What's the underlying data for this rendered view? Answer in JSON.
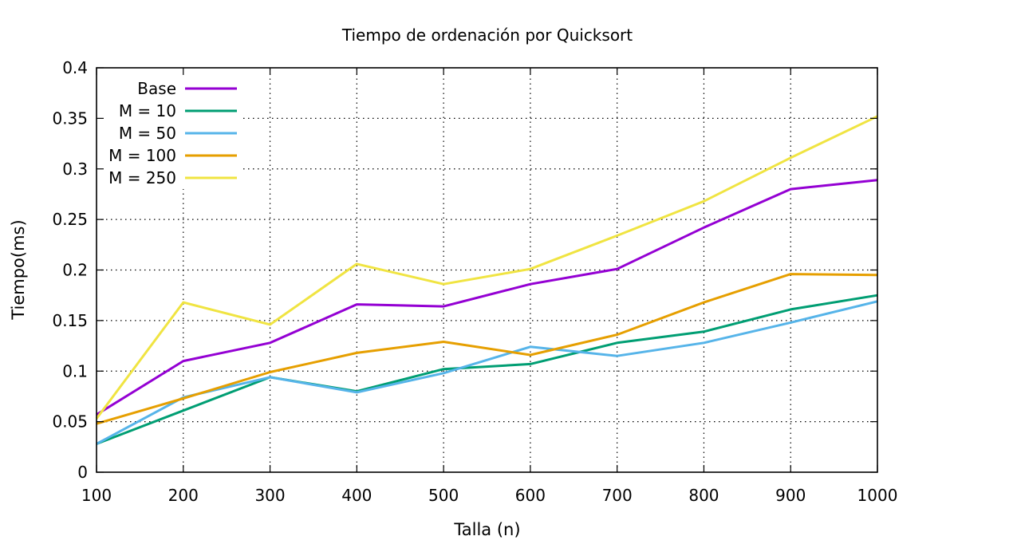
{
  "chart_data": {
    "type": "line",
    "title": "Tiempo de ordenación por Quicksort",
    "xlabel": "Talla (n)",
    "ylabel": "Tiempo(ms)",
    "x": [
      100,
      200,
      300,
      400,
      500,
      600,
      700,
      800,
      900,
      1000
    ],
    "xlim": [
      100,
      1000
    ],
    "ylim": [
      0,
      0.4
    ],
    "x_ticks": [
      100,
      200,
      300,
      400,
      500,
      600,
      700,
      800,
      900,
      1000
    ],
    "x_tick_labels": [
      "100",
      "200",
      "300",
      "400",
      "500",
      "600",
      "700",
      "800",
      "900",
      "1000"
    ],
    "y_ticks": [
      0,
      0.05,
      0.1,
      0.15,
      0.2,
      0.25,
      0.3,
      0.35,
      0.4
    ],
    "y_tick_labels": [
      "0",
      "0.05",
      "0.1",
      "0.15",
      "0.2",
      "0.25",
      "0.3",
      "0.35",
      "0.4"
    ],
    "grid": true,
    "legend_position": "top-left",
    "series": [
      {
        "name": "Base",
        "color": "#9400d3",
        "values": [
          0.057,
          0.11,
          0.128,
          0.166,
          0.164,
          0.186,
          0.201,
          0.242,
          0.28,
          0.289
        ]
      },
      {
        "name": "M = 10",
        "color": "#009e73",
        "values": [
          0.028,
          0.061,
          0.094,
          0.08,
          0.102,
          0.107,
          0.128,
          0.139,
          0.161,
          0.175
        ]
      },
      {
        "name": "M = 50",
        "color": "#56b4e9",
        "values": [
          0.028,
          0.074,
          0.094,
          0.079,
          0.098,
          0.124,
          0.115,
          0.128,
          0.148,
          0.169
        ]
      },
      {
        "name": "M = 100",
        "color": "#e69f00",
        "values": [
          0.048,
          0.073,
          0.099,
          0.118,
          0.129,
          0.116,
          0.136,
          0.168,
          0.196,
          0.195
        ]
      },
      {
        "name": "M = 250",
        "color": "#f0e442",
        "values": [
          0.053,
          0.168,
          0.146,
          0.206,
          0.186,
          0.201,
          0.234,
          0.268,
          0.311,
          0.352
        ]
      }
    ]
  }
}
